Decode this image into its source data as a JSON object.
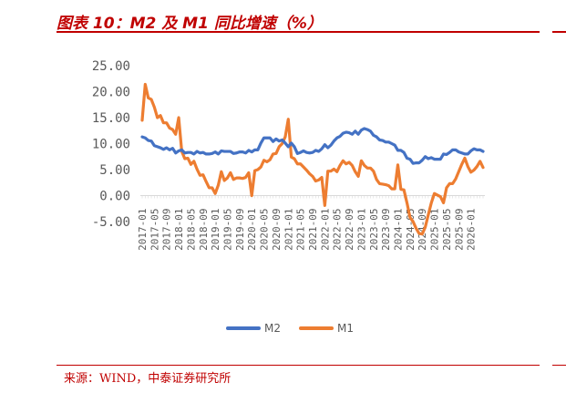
{
  "header": {
    "title": "图表 10：M2 及 M1 同比增速（%）"
  },
  "footer": {
    "source": "来源：WIND，中泰证券研究所"
  },
  "chart_data": {
    "type": "line",
    "title": "图表 10：M2 及 M1 同比增速（%）",
    "xlabel": "",
    "ylabel": "",
    "ylim": [
      -5,
      25
    ],
    "y_ticks": [
      "25.00",
      "20.00",
      "15.00",
      "10.00",
      "5.00",
      "0.00",
      "-5.00"
    ],
    "y_tick_values": [
      25,
      20,
      15,
      10,
      5,
      0,
      -5
    ],
    "x_start": "2017-01",
    "x_ticks": [
      "2017-01",
      "2017-05",
      "2017-09",
      "2018-01",
      "2018-05",
      "2018-09",
      "2019-01",
      "2019-05",
      "2019-09",
      "2020-01",
      "2020-05",
      "2020-09",
      "2021-01",
      "2021-05",
      "2021-09",
      "2022-01",
      "2022-05",
      "2022-09",
      "2023-01",
      "2023-05",
      "2023-09",
      "2024-01",
      "2024-05",
      "2024-09",
      "2025-01",
      "2025-05",
      "2025-09",
      "2026-01"
    ],
    "grid": "y-zero-line",
    "legend_placement": "bottom",
    "series": [
      {
        "name": "M2",
        "color": "#4472c4",
        "values": [
          11.3,
          11.1,
          10.6,
          10.5,
          9.6,
          9.4,
          9.2,
          8.9,
          9.2,
          8.8,
          9.1,
          8.2,
          8.6,
          8.8,
          8.2,
          8.3,
          8.3,
          8.0,
          8.5,
          8.2,
          8.3,
          8.0,
          8.0,
          8.1,
          8.4,
          8.0,
          8.6,
          8.5,
          8.5,
          8.5,
          8.1,
          8.2,
          8.4,
          8.4,
          8.2,
          8.7,
          8.4,
          8.8,
          8.8,
          10.1,
          11.1,
          11.1,
          11.1,
          10.4,
          10.9,
          10.5,
          10.7,
          10.1,
          9.4,
          10.1,
          9.4,
          8.1,
          8.3,
          8.6,
          8.3,
          8.2,
          8.3,
          8.7,
          8.5,
          9.0,
          9.8,
          9.2,
          9.7,
          10.5,
          11.1,
          11.4,
          12.0,
          12.2,
          12.1,
          11.8,
          12.4,
          11.8,
          12.6,
          12.9,
          12.7,
          12.4,
          11.6,
          11.3,
          10.7,
          10.6,
          10.3,
          10.3,
          10.0,
          9.7,
          8.7,
          8.7,
          8.3,
          7.2,
          7.0,
          6.2,
          6.3,
          6.3,
          6.8,
          7.5,
          7.1,
          7.3,
          7.0,
          7.0,
          7.0,
          8.0,
          7.9,
          8.3,
          8.8,
          8.8,
          8.4,
          8.2,
          8.0,
          8.0,
          8.6,
          9.0,
          8.8,
          8.8,
          8.5
        ]
      },
      {
        "name": "M1",
        "color": "#ed7d31",
        "values": [
          14.5,
          21.4,
          18.8,
          18.5,
          17.0,
          15.0,
          15.4,
          14.0,
          14.0,
          13.0,
          12.7,
          11.8,
          15.0,
          8.5,
          7.1,
          7.2,
          6.0,
          6.6,
          5.1,
          3.9,
          4.0,
          2.7,
          1.5,
          1.5,
          0.4,
          2.0,
          4.6,
          2.9,
          3.4,
          4.4,
          3.1,
          3.4,
          3.4,
          3.3,
          3.5,
          4.4,
          0.0,
          4.8,
          5.0,
          5.5,
          6.8,
          6.5,
          6.9,
          8.0,
          8.1,
          9.4,
          10.0,
          11.3,
          14.7,
          7.4,
          7.1,
          6.1,
          6.1,
          5.5,
          4.9,
          4.2,
          3.7,
          2.8,
          3.0,
          3.5,
          -1.9,
          4.7,
          4.7,
          5.1,
          4.6,
          5.8,
          6.7,
          6.1,
          6.4,
          5.8,
          4.6,
          3.7,
          6.7,
          5.8,
          5.3,
          5.3,
          4.7,
          3.1,
          2.3,
          2.2,
          2.1,
          1.9,
          1.3,
          1.3,
          5.9,
          1.2,
          1.1,
          -1.4,
          -4.2,
          -5.0,
          -6.3,
          -7.3,
          -7.4,
          -6.1,
          -3.7,
          -1.4,
          0.4,
          0.1,
          -0.2,
          -1.4,
          1.5,
          2.3,
          2.3,
          3.2,
          4.6,
          6.0,
          7.2,
          5.6,
          4.5,
          4.9,
          5.6,
          6.6,
          5.4
        ]
      }
    ]
  }
}
